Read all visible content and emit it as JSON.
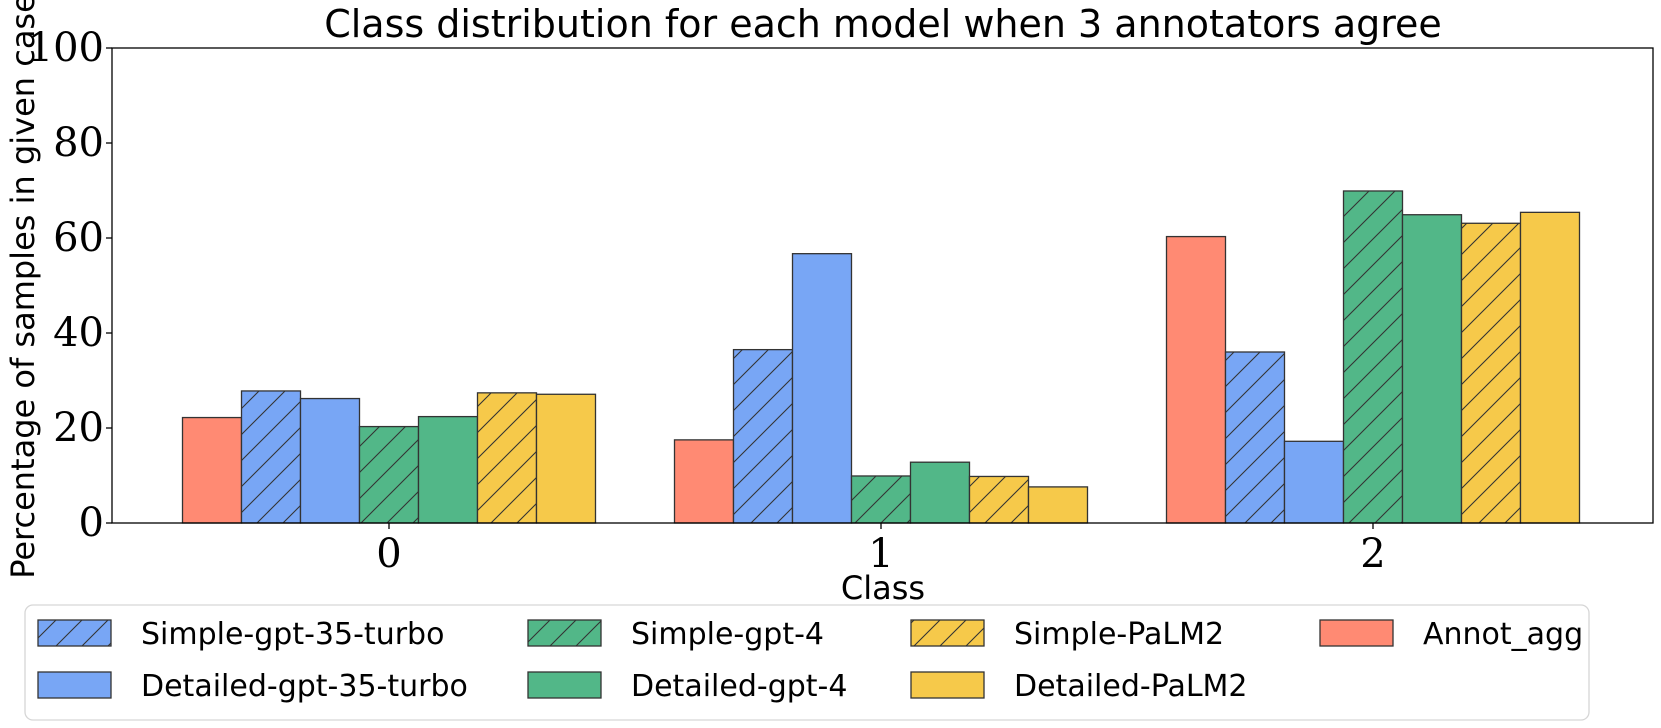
{
  "chart_data": {
    "type": "bar",
    "title": "Class distribution for each model when 3 annotators agree",
    "xlabel": "Class",
    "ylabel": "Percentage of samples in given case",
    "categories": [
      "0",
      "1",
      "2"
    ],
    "ylim": [
      0,
      100
    ],
    "yticks": [
      "0",
      "20",
      "40",
      "60",
      "80",
      "100"
    ],
    "grid": false,
    "legend_position": "bottom",
    "series": [
      {
        "name": "Annot_agg",
        "display_name": "Annot_agg",
        "values": [
          22.2,
          17.5,
          60.3
        ],
        "color": "#FF8A73",
        "hatch": false
      },
      {
        "name": "Simple-gpt-35-turbo",
        "display_name": "Simple-gpt-35-turbo",
        "values": [
          27.8,
          36.5,
          36.0
        ],
        "color": "#78A6F5",
        "hatch": true
      },
      {
        "name": "Detailed-gpt-35-turbo",
        "display_name": "Detailed-gpt-35-turbo",
        "values": [
          26.2,
          56.7,
          17.2
        ],
        "color": "#78A6F5",
        "hatch": false
      },
      {
        "name": "Simple-gpt-4",
        "display_name": "Simple-gpt-4",
        "values": [
          20.3,
          9.9,
          69.9
        ],
        "color": "#52B788",
        "hatch": true
      },
      {
        "name": "Detailed-gpt-4",
        "display_name": "Detailed-gpt-4",
        "values": [
          22.4,
          12.8,
          64.9
        ],
        "color": "#52B788",
        "hatch": false
      },
      {
        "name": "Simple-PaLM2",
        "display_name": "Simple-PaLM2",
        "values": [
          27.4,
          9.8,
          63.1
        ],
        "color": "#F6C94A",
        "hatch": true
      },
      {
        "name": "Detailed-PaLM2",
        "display_name": "Detailed-PaLM2",
        "values": [
          27.1,
          7.6,
          65.4
        ],
        "color": "#F6C94A",
        "hatch": false
      }
    ],
    "legend_order": [
      "Simple-gpt-35-turbo",
      "Simple-gpt-4",
      "Simple-PaLM2",
      "Annot_agg",
      "Detailed-gpt-35-turbo",
      "Detailed-gpt-4",
      "Detailed-PaLM2"
    ]
  }
}
